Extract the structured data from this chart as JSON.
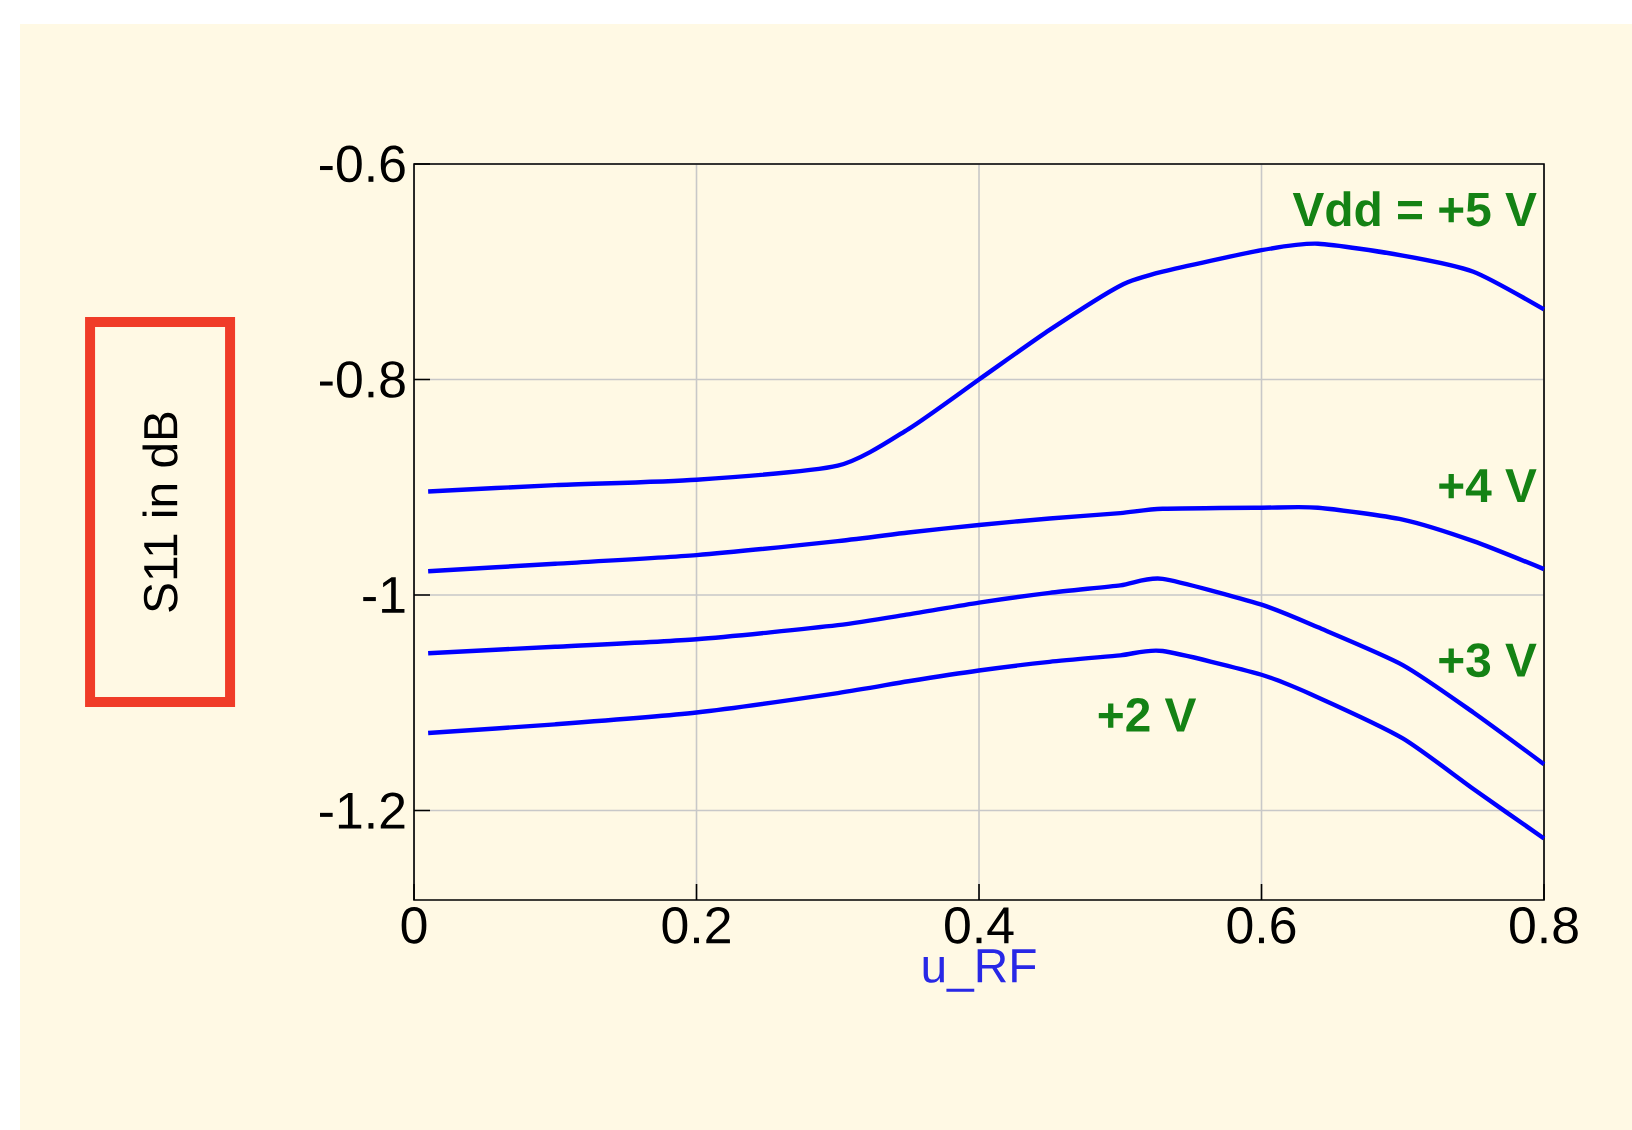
{
  "chart_data": {
    "type": "line",
    "xlabel": "u_RF",
    "ylabel": "S11 in dB",
    "x": [
      0.01,
      0.1,
      0.2,
      0.3,
      0.35,
      0.4,
      0.45,
      0.5,
      0.53,
      0.6,
      0.64,
      0.7,
      0.75,
      0.8
    ],
    "series": [
      {
        "name": "Vdd = +5 V",
        "color": "#0000ff",
        "values": [
          -0.904,
          -0.898,
          -0.893,
          -0.88,
          -0.846,
          -0.8,
          -0.754,
          -0.713,
          -0.7,
          -0.68,
          -0.674,
          -0.685,
          -0.7,
          -0.735
        ]
      },
      {
        "name": "+4 V",
        "color": "#0000ff",
        "values": [
          -0.978,
          -0.971,
          -0.963,
          -0.95,
          -0.942,
          -0.935,
          -0.929,
          -0.924,
          -0.92,
          -0.919,
          -0.919,
          -0.93,
          -0.95,
          -0.976
        ]
      },
      {
        "name": "+3 V",
        "color": "#0000ff",
        "values": [
          -1.054,
          -1.048,
          -1.041,
          -1.028,
          -1.018,
          -1.007,
          -0.998,
          -0.991,
          -0.985,
          -1.009,
          -1.03,
          -1.065,
          -1.109,
          -1.157
        ]
      },
      {
        "name": "+2 V",
        "color": "#0000ff",
        "values": [
          -1.128,
          -1.12,
          -1.109,
          -1.091,
          -1.08,
          -1.07,
          -1.062,
          -1.056,
          -1.052,
          -1.074,
          -1.095,
          -1.133,
          -1.18,
          -1.226
        ]
      }
    ],
    "xlim": [
      0,
      0.8
    ],
    "ylim": [
      -1.283,
      -0.6
    ],
    "xticks": [
      0,
      0.2,
      0.4,
      0.6,
      0.8
    ],
    "yticks": [
      -1.2,
      -1,
      -0.8,
      -0.6
    ],
    "grid": true,
    "line_style": "solid",
    "marker": "none"
  }
}
